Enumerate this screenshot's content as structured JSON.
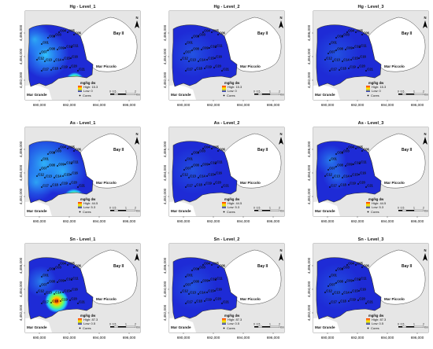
{
  "panels": [
    {
      "title": "Hg - Level_1",
      "element": "Hg",
      "level": 1,
      "legend_high": "High: 15.3",
      "legend_low": "Low: 0",
      "row": 0,
      "col": 0
    },
    {
      "title": "Hg - Level_2",
      "element": "Hg",
      "level": 2,
      "legend_high": "High: 15.3",
      "legend_low": "Low: 0",
      "row": 0,
      "col": 1
    },
    {
      "title": "Hg - Level_3",
      "element": "Hg",
      "level": 3,
      "legend_high": "High: 15.3",
      "legend_low": "Low: 0",
      "row": 0,
      "col": 2
    },
    {
      "title": "As - Level_1",
      "element": "As",
      "level": 1,
      "legend_high": "High: 44.5",
      "legend_low": "Low: 5.3",
      "row": 1,
      "col": 0
    },
    {
      "title": "As - Level_2",
      "element": "As",
      "level": 2,
      "legend_high": "High: 44.5",
      "legend_low": "Low: 5.3",
      "row": 1,
      "col": 1
    },
    {
      "title": "As - Level_3",
      "element": "As",
      "level": 3,
      "legend_high": "High: 44.5",
      "legend_low": "Low: 5.3",
      "row": 1,
      "col": 2
    },
    {
      "title": "Sn - Level_1",
      "element": "Sn",
      "level": 1,
      "legend_high": "High: 87.3",
      "legend_low": "Low: 0.5",
      "row": 2,
      "col": 0
    },
    {
      "title": "Sn - Level_2",
      "element": "Sn",
      "level": 2,
      "legend_high": "High: 87.3",
      "legend_low": "Low: 0.5",
      "row": 2,
      "col": 1
    },
    {
      "title": "Sn - Level_3",
      "element": "Sn",
      "level": 3,
      "legend_high": "High: 87.3",
      "legend_low": "Low: 0.5",
      "row": 2,
      "col": 2
    }
  ],
  "labels": {
    "bay": "Bay II",
    "mar_piccolo": "Mar Piccolo",
    "mar_grande": "Mar Grande",
    "legend_title": "mg/kg dw",
    "legend_cores": "Cores",
    "north": "N"
  },
  "x_ticks": [
    "690,000",
    "692,000",
    "694,000",
    "696,000"
  ],
  "y_ticks": [
    "4,486,000",
    "4,484,000",
    "4,482,000"
  ],
  "scale_ticks": [
    "0",
    "0.5",
    "1",
    "2"
  ],
  "scale_unit": "Km",
  "cores": [
    "C01",
    "C02",
    "C03",
    "C04",
    "C05",
    "C06",
    "C07",
    "C08",
    "C09",
    "C10",
    "C11",
    "C12",
    "C13",
    "C14",
    "C15",
    "C16",
    "C17",
    "C18",
    "C19",
    "C20",
    "C21"
  ],
  "colors": {
    "high": "#ff2a00",
    "mid": "#ffff00",
    "low": "#1e2bd6",
    "land": "#e6e6e6",
    "water_empty": "#ffffff"
  }
}
